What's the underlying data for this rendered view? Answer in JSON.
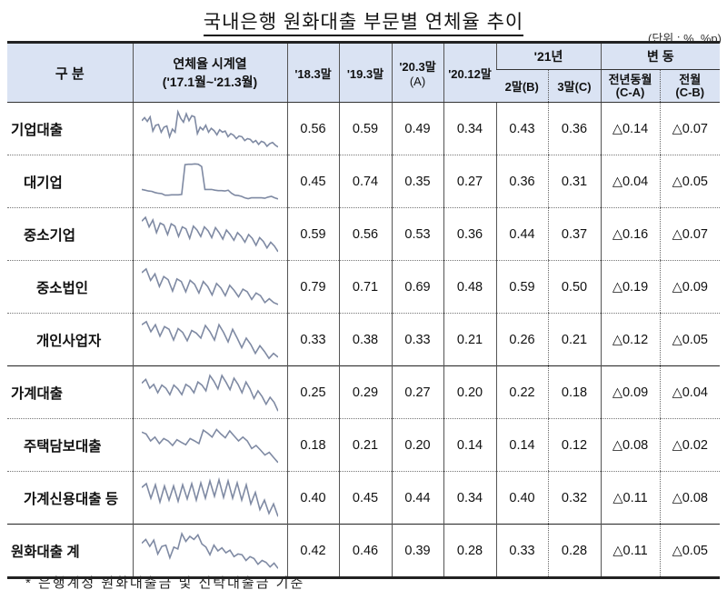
{
  "title": "국내은행 원화대출 부문별 연체율 추이",
  "unit": "(단위 : %, %p)",
  "header": {
    "category": "구 분",
    "series_line1": "연체율 시계열",
    "series_line2": "('17.1월~'21.3월)",
    "c1": "'18.3말",
    "c2": "'19.3말",
    "c3_line1": "'20.3말",
    "c3_line2": "(A)",
    "c4": "'20.12말",
    "y21": "'21년",
    "c5": "2말(B)",
    "c6": "3말(C)",
    "change": "변 동",
    "c7_line1": "전년동월",
    "c7_line2": "(C-A)",
    "c8_line1": "전월",
    "c8_line2": "(C-B)"
  },
  "rows": [
    {
      "label": "기업대출",
      "level": 0,
      "v": [
        "0.56",
        "0.59",
        "0.49",
        "0.34",
        "0.43",
        "0.36",
        "△0.14",
        "△0.07"
      ]
    },
    {
      "label": "대기업",
      "level": 1,
      "v": [
        "0.45",
        "0.74",
        "0.35",
        "0.27",
        "0.36",
        "0.31",
        "△0.04",
        "△0.05"
      ]
    },
    {
      "label": "중소기업",
      "level": 1,
      "v": [
        "0.59",
        "0.56",
        "0.53",
        "0.36",
        "0.44",
        "0.37",
        "△0.16",
        "△0.07"
      ]
    },
    {
      "label": "중소법인",
      "level": 2,
      "v": [
        "0.79",
        "0.71",
        "0.69",
        "0.48",
        "0.59",
        "0.50",
        "△0.19",
        "△0.09"
      ]
    },
    {
      "label": "개인사업자",
      "level": 2,
      "v": [
        "0.33",
        "0.38",
        "0.33",
        "0.21",
        "0.26",
        "0.21",
        "△0.12",
        "△0.05"
      ]
    },
    {
      "label": "가계대출",
      "level": 0,
      "v": [
        "0.25",
        "0.29",
        "0.27",
        "0.20",
        "0.22",
        "0.18",
        "△0.09",
        "△0.04"
      ]
    },
    {
      "label": "주택담보대출",
      "level": 1,
      "v": [
        "0.18",
        "0.21",
        "0.20",
        "0.14",
        "0.14",
        "0.12",
        "△0.08",
        "△0.02"
      ]
    },
    {
      "label": "가계신용대출 등",
      "level": 1,
      "v": [
        "0.40",
        "0.45",
        "0.44",
        "0.34",
        "0.40",
        "0.32",
        "△0.11",
        "△0.08"
      ]
    },
    {
      "label": "원화대출 계",
      "level": 0,
      "v": [
        "0.42",
        "0.46",
        "0.39",
        "0.28",
        "0.33",
        "0.28",
        "△0.11",
        "△0.05"
      ]
    }
  ],
  "footnote": "* 은행계정 원화대출금 및 신탁대출금 기준",
  "colors": {
    "header_bg": "#dae3f3",
    "sparkline": "#7f8aa3",
    "border": "#222222"
  },
  "chart_data": {
    "type": "table",
    "title": "국내은행 원화대출 부문별 연체율 추이",
    "unit": "%, %p",
    "columns": [
      "'18.3말",
      "'19.3말",
      "'20.3말(A)",
      "'20.12말",
      "'21.2말(B)",
      "'21.3말(C)",
      "전년동월(C-A)",
      "전월(C-B)"
    ],
    "categories": [
      "기업대출",
      "대기업",
      "중소기업",
      "중소법인",
      "개인사업자",
      "가계대출",
      "주택담보대출",
      "가계신용대출 등",
      "원화대출 계"
    ],
    "series": [
      {
        "name": "기업대출",
        "values": [
          0.56,
          0.59,
          0.49,
          0.34,
          0.43,
          0.36,
          -0.14,
          -0.07
        ]
      },
      {
        "name": "대기업",
        "values": [
          0.45,
          0.74,
          0.35,
          0.27,
          0.36,
          0.31,
          -0.04,
          -0.05
        ]
      },
      {
        "name": "중소기업",
        "values": [
          0.59,
          0.56,
          0.53,
          0.36,
          0.44,
          0.37,
          -0.16,
          -0.07
        ]
      },
      {
        "name": "중소법인",
        "values": [
          0.79,
          0.71,
          0.69,
          0.48,
          0.59,
          0.5,
          -0.19,
          -0.09
        ]
      },
      {
        "name": "개인사업자",
        "values": [
          0.33,
          0.38,
          0.33,
          0.21,
          0.26,
          0.21,
          -0.12,
          -0.05
        ]
      },
      {
        "name": "가계대출",
        "values": [
          0.25,
          0.29,
          0.27,
          0.2,
          0.22,
          0.18,
          -0.09,
          -0.04
        ]
      },
      {
        "name": "주택담보대출",
        "values": [
          0.18,
          0.21,
          0.2,
          0.14,
          0.14,
          0.12,
          -0.08,
          -0.02
        ]
      },
      {
        "name": "가계신용대출 등",
        "values": [
          0.4,
          0.45,
          0.44,
          0.34,
          0.4,
          0.32,
          -0.11,
          -0.08
        ]
      },
      {
        "name": "원화대출 계",
        "values": [
          0.42,
          0.46,
          0.39,
          0.28,
          0.33,
          0.28,
          -0.11,
          -0.05
        ]
      }
    ],
    "sparkline_period": "'17.1월~'21.3월",
    "sparklines_normalized": [
      [
        0.72,
        0.8,
        0.7,
        0.82,
        0.45,
        0.6,
        0.62,
        0.42,
        0.55,
        0.58,
        0.3,
        0.5,
        0.42,
        0.95,
        0.78,
        0.68,
        0.9,
        0.72,
        0.85,
        0.82,
        0.38,
        0.55,
        0.48,
        0.6,
        0.42,
        0.52,
        0.46,
        0.35,
        0.48,
        0.42,
        0.45,
        0.3,
        0.38,
        0.34,
        0.25,
        0.32,
        0.3,
        0.2,
        0.25,
        0.23,
        0.15,
        0.2,
        0.1,
        0.18,
        0.15,
        0.05,
        0.12,
        0.15,
        0.08,
        0.03
      ],
      [
        0.3,
        0.28,
        0.26,
        0.25,
        0.22,
        0.2,
        0.19,
        0.15,
        0.15,
        0.16,
        0.16,
        0.16,
        0.17,
        0.95,
        0.96,
        0.96,
        0.97,
        0.96,
        0.9,
        0.3,
        0.3,
        0.3,
        0.28,
        0.27,
        0.27,
        0.26,
        0.28,
        0.2,
        0.15,
        0.14,
        0.12,
        0.08,
        0.06,
        0.08,
        0.08,
        0.08,
        0.08,
        0.07,
        0.1,
        0.12,
        0.08,
        0.05
      ],
      [
        0.85,
        0.95,
        0.7,
        0.88,
        0.55,
        0.8,
        0.75,
        0.5,
        0.78,
        0.72,
        0.45,
        0.7,
        0.65,
        0.4,
        0.72,
        0.62,
        0.45,
        0.7,
        0.6,
        0.42,
        0.68,
        0.55,
        0.38,
        0.62,
        0.5,
        0.35,
        0.55,
        0.45,
        0.3,
        0.5,
        0.4,
        0.22,
        0.42,
        0.32,
        0.15,
        0.3,
        0.2,
        0.05
      ],
      [
        0.88,
        0.98,
        0.68,
        0.85,
        0.52,
        0.78,
        0.7,
        0.4,
        0.72,
        0.65,
        0.38,
        0.68,
        0.58,
        0.35,
        0.65,
        0.52,
        0.3,
        0.6,
        0.48,
        0.28,
        0.55,
        0.42,
        0.25,
        0.45,
        0.38,
        0.18,
        0.35,
        0.28,
        0.1,
        0.2,
        0.1,
        0.05
      ],
      [
        0.9,
        0.98,
        0.72,
        0.9,
        0.6,
        0.85,
        0.78,
        0.5,
        0.8,
        0.7,
        0.48,
        0.75,
        0.68,
        0.55,
        0.88,
        0.72,
        0.5,
        0.9,
        0.7,
        0.45,
        0.78,
        0.55,
        0.3,
        0.55,
        0.38,
        0.15,
        0.35,
        0.2,
        0.02,
        0.15,
        0.05
      ],
      [
        0.75,
        0.85,
        0.62,
        0.72,
        0.5,
        0.7,
        0.62,
        0.45,
        0.7,
        0.6,
        0.45,
        0.72,
        0.65,
        0.5,
        0.78,
        0.7,
        0.55,
        0.95,
        0.8,
        0.6,
        0.95,
        0.78,
        0.58,
        0.88,
        0.72,
        0.5,
        0.78,
        0.6,
        0.35,
        0.55,
        0.4,
        0.2,
        0.38,
        0.25,
        0.02
      ],
      [
        0.85,
        0.8,
        0.62,
        0.72,
        0.55,
        0.68,
        0.62,
        0.5,
        0.65,
        0.58,
        0.52,
        0.68,
        0.62,
        0.55,
        0.9,
        0.82,
        0.72,
        0.92,
        0.8,
        0.7,
        0.88,
        0.75,
        0.62,
        0.72,
        0.62,
        0.42,
        0.5,
        0.38,
        0.25,
        0.32,
        0.18,
        0.05
      ],
      [
        0.78,
        0.88,
        0.5,
        0.85,
        0.4,
        0.82,
        0.45,
        0.82,
        0.42,
        0.85,
        0.48,
        0.88,
        0.45,
        0.9,
        0.5,
        0.95,
        0.55,
        0.98,
        0.52,
        0.95,
        0.5,
        0.9,
        0.45,
        0.85,
        0.35,
        0.65,
        0.2,
        0.45,
        0.1,
        0.35,
        0.02
      ],
      [
        0.7,
        0.8,
        0.62,
        0.78,
        0.42,
        0.62,
        0.65,
        0.32,
        0.6,
        0.55,
        0.95,
        0.75,
        0.88,
        0.8,
        0.92,
        0.68,
        0.6,
        0.4,
        0.65,
        0.5,
        0.58,
        0.45,
        0.52,
        0.35,
        0.42,
        0.4,
        0.25,
        0.35,
        0.3,
        0.15,
        0.25,
        0.2,
        0.08,
        0.18,
        0.04
      ]
    ]
  }
}
